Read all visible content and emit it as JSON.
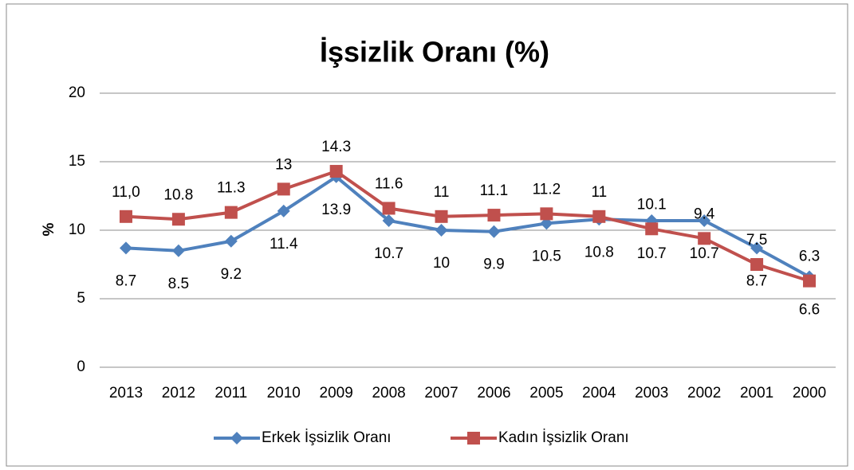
{
  "chart_data": {
    "type": "line",
    "title": "İşsizlik Oranı (%)",
    "y_label": "%",
    "categories": [
      "2013",
      "2012",
      "2011",
      "2010",
      "2009",
      "2008",
      "2007",
      "2006",
      "2005",
      "2004",
      "2003",
      "2002",
      "2001",
      "2000"
    ],
    "series": [
      {
        "name": "Erkek İşsizlik Oranı",
        "color": "#4f81bd",
        "marker": "diamond",
        "values": [
          8.7,
          8.5,
          9.2,
          11.4,
          13.9,
          10.7,
          10,
          9.9,
          10.5,
          10.8,
          10.7,
          10.7,
          8.7,
          6.6
        ]
      },
      {
        "name": "Kadın İşsizlik Oranı",
        "color": "#c0504d",
        "marker": "square",
        "values": [
          11.0,
          10.8,
          11.3,
          13,
          14.3,
          11.6,
          11,
          11.1,
          11.2,
          11,
          10.1,
          9.4,
          7.5,
          6.3
        ],
        "value_labels": [
          "11,0",
          "10.8",
          "11.3",
          "13",
          "14.3",
          "11.6",
          "11",
          "11.1",
          "11.2",
          "11",
          "10.1",
          "9.4",
          "7.5",
          "6.3"
        ]
      }
    ],
    "ylim": [
      0,
      20
    ],
    "yticks": [
      0,
      5,
      10,
      15,
      20
    ],
    "grid": true,
    "legend": "bottom"
  }
}
